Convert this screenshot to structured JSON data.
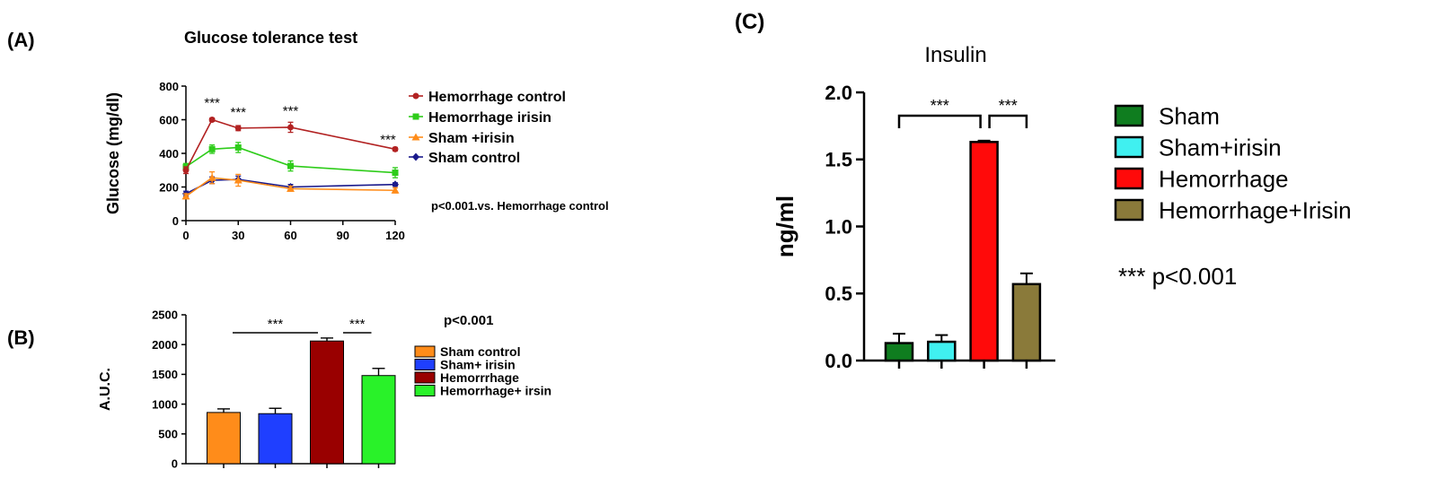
{
  "panels": {
    "a_label": "(A)",
    "b_label": "(B)",
    "c_label": "(C)"
  },
  "chart_data": [
    {
      "panel": "A",
      "type": "line",
      "title": "Glucose tolerance test",
      "xlabel": "",
      "ylabel": "Glucose (mg/dl)",
      "xlim": [
        0,
        120
      ],
      "ylim": [
        0,
        800
      ],
      "x_ticks": [
        "0",
        "30",
        "60",
        "90",
        "120"
      ],
      "y_ticks": [
        "0",
        "200",
        "400",
        "600",
        "800"
      ],
      "x": [
        0,
        15,
        30,
        60,
        120
      ],
      "series": [
        {
          "name": "Hemorrhage control",
          "color": "#b22222",
          "marker": "circle",
          "values": [
            300,
            600,
            550,
            555,
            425
          ],
          "errors": [
            20,
            10,
            15,
            30,
            10
          ]
        },
        {
          "name": "Hemorrhage irisin",
          "color": "#2ecc1a",
          "marker": "square",
          "values": [
            320,
            425,
            435,
            325,
            285
          ],
          "errors": [
            20,
            25,
            30,
            30,
            30
          ]
        },
        {
          "name": "Sham +irisin",
          "color": "#ff8c1a",
          "marker": "triangle",
          "values": [
            145,
            255,
            240,
            190,
            180
          ],
          "errors": [
            15,
            35,
            35,
            15,
            15
          ]
        },
        {
          "name": "Sham control",
          "color": "#1a1a8c",
          "marker": "diamond",
          "values": [
            160,
            240,
            245,
            200,
            215
          ],
          "errors": [
            15,
            20,
            20,
            15,
            10
          ]
        }
      ],
      "significance": [
        {
          "x": 15,
          "label": "***"
        },
        {
          "x": 30,
          "label": "***"
        },
        {
          "x": 60,
          "label": "***"
        },
        {
          "x": 120,
          "label": "***"
        }
      ],
      "annotation": "p<0.001.vs. Hemorrhage control",
      "legend_position": "right",
      "grid": false
    },
    {
      "panel": "B",
      "type": "bar",
      "title": "",
      "xlabel": "",
      "ylabel": "A.U.C.",
      "ylim": [
        0,
        2500
      ],
      "y_ticks": [
        "0",
        "500",
        "1000",
        "1500",
        "2000",
        "2500"
      ],
      "categories": [
        "Sham control",
        "Sham+ irisin",
        "Hemorrrhage",
        "Hemorrhage+ irsin"
      ],
      "values": [
        860,
        840,
        2060,
        1480
      ],
      "errors": [
        60,
        90,
        50,
        120
      ],
      "colors": [
        "#ff8c1a",
        "#1f3fff",
        "#990000",
        "#29f229"
      ],
      "significance": [
        {
          "from": 0,
          "to": 2,
          "label": "***"
        },
        {
          "from": 2,
          "to": 3,
          "label": "***"
        }
      ],
      "annotation": "p<0.001",
      "legend_position": "right",
      "grid": false
    },
    {
      "panel": "C",
      "type": "bar",
      "title": "Insulin",
      "xlabel": "",
      "ylabel": "ng/ml",
      "ylim": [
        0,
        2.0
      ],
      "y_ticks": [
        "0.0",
        "0.5",
        "1.0",
        "1.5",
        "2.0"
      ],
      "categories": [
        "Sham",
        "Sham+irisin",
        "Hemorrhage",
        "Hemorrhage+Irisin"
      ],
      "values": [
        0.13,
        0.14,
        1.63,
        0.57
      ],
      "errors": [
        0.07,
        0.05,
        0.01,
        0.08
      ],
      "colors": [
        "#0f7d1f",
        "#40f0f0",
        "#ff0a0a",
        "#8a7a3a"
      ],
      "significance": [
        {
          "from": 0,
          "to": 2,
          "label": "***"
        },
        {
          "from": 2,
          "to": 3,
          "label": "***"
        }
      ],
      "annotation": "*** p<0.001",
      "legend_position": "right",
      "grid": false
    }
  ]
}
